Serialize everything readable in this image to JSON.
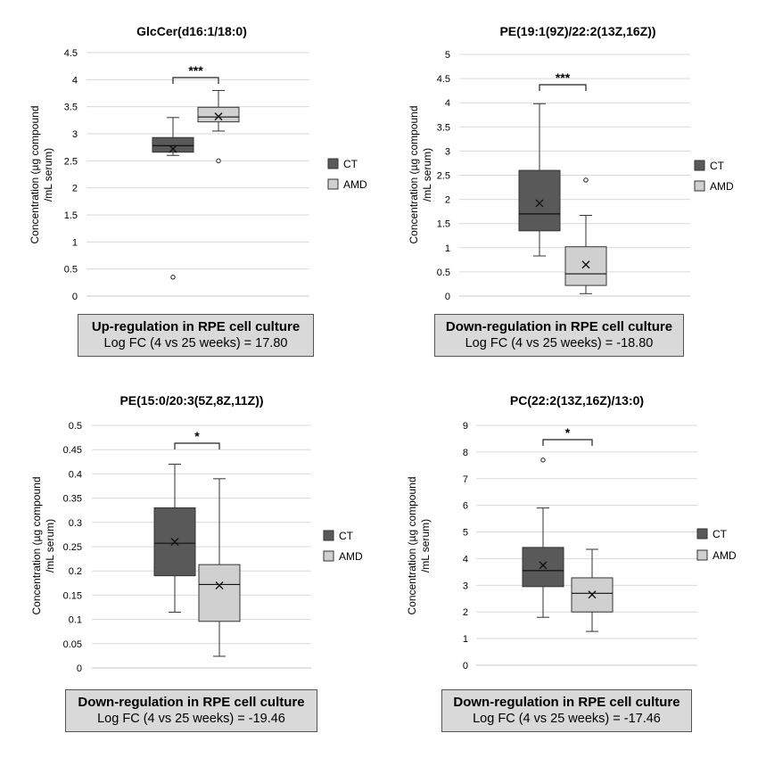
{
  "chart_data": [
    {
      "type": "box",
      "title": "GlcCer(d16:1/18:0)",
      "ylabel": "Concentration (µg compound /mL serum)",
      "ylim": [
        0,
        4.5
      ],
      "yticks": [
        "0",
        "0.5",
        "1",
        "1.5",
        "2",
        "2.5",
        "3",
        "3.5",
        "4",
        "4.5"
      ],
      "ytick_values": [
        0,
        0.5,
        1,
        1.5,
        2,
        2.5,
        3,
        3.5,
        4,
        4.5
      ],
      "significance": "***",
      "series": [
        {
          "name": "CT",
          "color": "#595959",
          "min": 2.6,
          "q1": 2.66,
          "median": 2.78,
          "q3": 2.93,
          "max": 3.3,
          "mean": 2.72,
          "outliers": [
            0.35
          ]
        },
        {
          "name": "AMD",
          "color": "#d0d0d0",
          "min": 3.05,
          "q1": 3.22,
          "median": 3.31,
          "q3": 3.49,
          "max": 3.8,
          "mean": 3.32,
          "outliers": [
            2.5
          ]
        }
      ],
      "caption": {
        "heading": "Up-regulation in RPE cell culture",
        "detail": "Log FC (4 vs 25 weeks) = 17.80"
      }
    },
    {
      "type": "box",
      "title": "PE(19:1(9Z)/22:2(13Z,16Z))",
      "ylabel": "Concentration (µg compound /mL serum)",
      "ylim": [
        0,
        5
      ],
      "yticks": [
        "0",
        "0.5",
        "1",
        "1.5",
        "2",
        "2.5",
        "3",
        "3.5",
        "4",
        "4.5",
        "5"
      ],
      "ytick_values": [
        0,
        0.5,
        1,
        1.5,
        2,
        2.5,
        3,
        3.5,
        4,
        4.5,
        5
      ],
      "significance": "***",
      "series": [
        {
          "name": "CT",
          "color": "#595959",
          "min": 0.83,
          "q1": 1.35,
          "median": 1.7,
          "q3": 2.6,
          "max": 3.98,
          "mean": 1.92,
          "outliers": []
        },
        {
          "name": "AMD",
          "color": "#d0d0d0",
          "min": 0.05,
          "q1": 0.22,
          "median": 0.46,
          "q3": 1.02,
          "max": 1.67,
          "mean": 0.65,
          "outliers": [
            2.4
          ]
        }
      ],
      "caption": {
        "heading": "Down-regulation in RPE cell culture",
        "detail": "Log FC (4 vs 25 weeks) = -18.80"
      }
    },
    {
      "type": "box",
      "title": "PE(15:0/20:3(5Z,8Z,11Z))",
      "ylabel": "Concentration (µg compound /mL serum)",
      "ylim": [
        0,
        0.5
      ],
      "yticks": [
        "0",
        "0.05",
        "0.1",
        "0.15",
        "0.2",
        "0.25",
        "0.3",
        "0.35",
        "0.4",
        "0.45",
        "0.5"
      ],
      "ytick_values": [
        0,
        0.05,
        0.1,
        0.15,
        0.2,
        0.25,
        0.3,
        0.35,
        0.4,
        0.45,
        0.5
      ],
      "significance": "*",
      "series": [
        {
          "name": "CT",
          "color": "#595959",
          "min": 0.115,
          "q1": 0.19,
          "median": 0.257,
          "q3": 0.33,
          "max": 0.42,
          "mean": 0.26,
          "outliers": []
        },
        {
          "name": "AMD",
          "color": "#d0d0d0",
          "min": 0.024,
          "q1": 0.096,
          "median": 0.172,
          "q3": 0.213,
          "max": 0.39,
          "mean": 0.17,
          "outliers": []
        }
      ],
      "caption": {
        "heading": "Down-regulation in RPE cell culture",
        "detail": "Log FC (4 vs 25 weeks) = -19.46"
      }
    },
    {
      "type": "box",
      "title": "PC(22:2(13Z,16Z)/13:0)",
      "ylabel": "Concentration (µg compound /mL serum)",
      "ylim": [
        0,
        9
      ],
      "yticks": [
        "0",
        "1",
        "2",
        "3",
        "4",
        "5",
        "6",
        "7",
        "8",
        "9"
      ],
      "ytick_values": [
        0,
        1,
        2,
        3,
        4,
        5,
        6,
        7,
        8,
        9
      ],
      "significance": "*",
      "series": [
        {
          "name": "CT",
          "color": "#595959",
          "min": 1.8,
          "q1": 2.95,
          "median": 3.55,
          "q3": 4.42,
          "max": 5.9,
          "mean": 3.75,
          "outliers": [
            7.7
          ]
        },
        {
          "name": "AMD",
          "color": "#d0d0d0",
          "min": 1.27,
          "q1": 2.0,
          "median": 2.7,
          "q3": 3.28,
          "max": 4.35,
          "mean": 2.65,
          "outliers": []
        }
      ],
      "caption": {
        "heading": "Down-regulation in RPE cell culture",
        "detail": "Log FC (4 vs 25 weeks) = -17.46"
      }
    }
  ]
}
